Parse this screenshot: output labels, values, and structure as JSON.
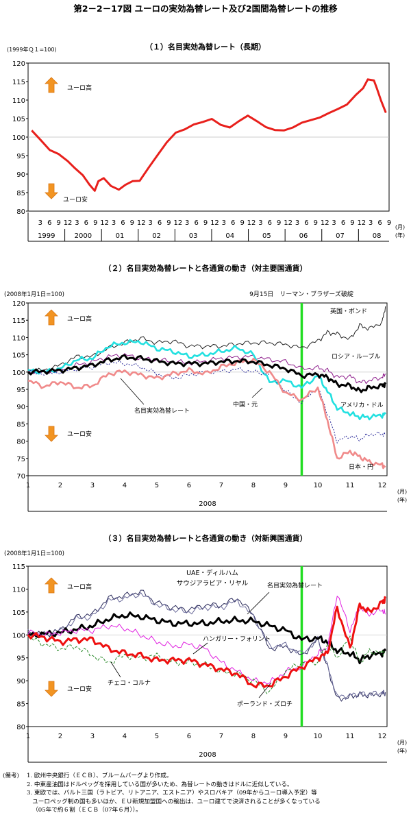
{
  "figure_title": "第2－2－17図 ユーロの実効為替レート及び2国間為替レートの推移",
  "panels": [
    {
      "title": "（１）名目実効為替レート（長期）",
      "unit_note": "(1999年Ｑ１=100)",
      "up_label": "ユーロ高",
      "down_label": "ユーロ安",
      "axis_unit_month": "(月)",
      "axis_unit_year": "(年)"
    },
    {
      "title": "（２）名目実効為替レートと各通貨の動き（対主要国通貨）",
      "unit_note": "(2008年1月1日=100)",
      "event_label": "9月15日　リーマン・ブラザーズ破綻",
      "up_label": "ユーロ高",
      "down_label": "ユーロ安",
      "axis_unit_month": "(月)",
      "axis_unit_year": "(年)",
      "year_label": "2008"
    },
    {
      "title": "（３）名目実効為替レートと各通貨の動き（対新興国通貨）",
      "unit_note": "(2008年1月1日=100)",
      "up_label": "ユーロ高",
      "down_label": "ユーロ安",
      "axis_unit_month": "(月)",
      "axis_unit_year": "(年)",
      "year_label": "2008"
    }
  ],
  "notes": [
    {
      "label": "(備考)",
      "text": "1. 欧州中央銀行（ＥＣＢ）、ブルームバーグより作成。"
    },
    {
      "label": "",
      "text": "2. 中東産油国はドルペッグを採用している国が多いため、為替レートの動きはドルに近似している。"
    },
    {
      "label": "",
      "text": "3. 東欧では、バルト三国（ラトビア、リトアニア、エストニア）やスロバキア（09年からユーロ導入予定）等"
    },
    {
      "label": "",
      "text": "   ユーロペッグ制の国も多いほか、ＥＵ新規加盟国への輸出は、ユーロ建てで決済されることが多くなっている"
    },
    {
      "label": "",
      "text": "   （05年で約６割（ＥＣＢ（07年６月））。"
    }
  ],
  "chart_data": [
    {
      "type": "line",
      "x_tick_labels": [
        "3",
        "6",
        "9",
        "12",
        "3",
        "6",
        "9",
        "12",
        "3",
        "6",
        "9",
        "12",
        "3",
        "6",
        "9",
        "12",
        "3",
        "6",
        "9",
        "12",
        "3",
        "6",
        "9",
        "12",
        "3",
        "6",
        "9",
        "12",
        "3",
        "6",
        "9",
        "12",
        "3",
        "6",
        "9",
        "12",
        "3",
        "6",
        "9"
      ],
      "year_labels": [
        "1999",
        "2000",
        "01",
        "02",
        "03",
        "04",
        "05",
        "06",
        "07",
        "08"
      ],
      "ylim": [
        80,
        120
      ],
      "yticks": [
        80,
        85,
        90,
        95,
        100,
        105,
        110,
        115,
        120
      ],
      "series": [
        {
          "color": "#e8201c",
          "x": [
            1999.0,
            1999.25,
            1999.5,
            1999.75,
            2000.0,
            2000.2,
            2000.42,
            2000.6,
            2000.75,
            2000.85,
            2001.0,
            2001.2,
            2001.42,
            2001.6,
            2001.8,
            2002.0,
            2002.25,
            2002.5,
            2002.75,
            2003.0,
            2003.25,
            2003.5,
            2003.75,
            2004.0,
            2004.25,
            2004.5,
            2004.75,
            2005.0,
            2005.25,
            2005.5,
            2005.75,
            2006.0,
            2006.25,
            2006.5,
            2006.75,
            2007.0,
            2007.25,
            2007.5,
            2007.75,
            2008.0,
            2008.2,
            2008.33,
            2008.5,
            2008.58,
            2008.7,
            2008.83
          ],
          "values": [
            101.8,
            99.2,
            96.5,
            95.4,
            93.5,
            91.6,
            89.7,
            87.2,
            85.5,
            88.1,
            88.9,
            86.8,
            85.8,
            87.1,
            88.1,
            88.2,
            91.8,
            95.2,
            98.6,
            101.2,
            102.1,
            103.4,
            104.1,
            104.9,
            103.3,
            102.6,
            104.3,
            105.8,
            104.3,
            102.7,
            101.9,
            101.8,
            102.6,
            103.9,
            104.6,
            105.3,
            106.5,
            107.6,
            108.8,
            111.4,
            113.2,
            115.6,
            115.3,
            113.2,
            109.8,
            106.6
          ]
        }
      ]
    },
    {
      "type": "line",
      "x_tick_labels": [
        "1",
        "2",
        "3",
        "4",
        "5",
        "6",
        "7",
        "8",
        "9",
        "10",
        "11",
        "12"
      ],
      "ylim": [
        70,
        120
      ],
      "yticks": [
        70,
        75,
        80,
        85,
        90,
        95,
        100,
        105,
        110,
        115,
        120
      ],
      "event_x": 9.5,
      "series": [
        {
          "name": "英国・ポンド",
          "color": "#222222",
          "x": [
            1,
            1.5,
            2,
            2.5,
            3,
            3.5,
            4,
            4.5,
            5,
            5.5,
            6,
            6.5,
            7,
            7.5,
            8,
            8.5,
            9,
            9.5,
            10,
            10.3,
            10.6,
            11,
            11.3,
            11.6,
            12,
            12.1
          ],
          "values": [
            100.5,
            100.5,
            102,
            104.5,
            104.5,
            107,
            108.5,
            109.8,
            108.5,
            109,
            107.5,
            107.5,
            107.5,
            108.2,
            108.5,
            108.5,
            108,
            107,
            109,
            111.5,
            111,
            109.5,
            113.5,
            112.5,
            114.5,
            119
          ]
        },
        {
          "name": "ロシア・ルーブル",
          "color": "#8c1a8a",
          "x": [
            1,
            1.5,
            2,
            2.5,
            3,
            3.5,
            4,
            4.5,
            5,
            5.5,
            6,
            6.5,
            7,
            7.5,
            8,
            8.5,
            9,
            9.5,
            10,
            10.3,
            10.6,
            11,
            11.3,
            11.6,
            12,
            12.1
          ],
          "values": [
            100,
            99.8,
            100.5,
            102,
            103,
            104.5,
            105,
            103.8,
            103.5,
            103.2,
            102.5,
            103.2,
            104,
            104.3,
            104.5,
            103.6,
            103,
            101,
            101.2,
            100.5,
            98.5,
            98.8,
            97,
            97.5,
            98.5,
            99.5
          ]
        },
        {
          "name": "アメリカ・ドル",
          "color": "#22e0e0",
          "x": [
            1,
            1.5,
            2,
            2.5,
            3,
            3.5,
            4,
            4.5,
            5,
            5.5,
            6,
            6.5,
            7,
            7.5,
            8,
            8.5,
            9,
            9.5,
            10,
            10.3,
            10.6,
            11,
            11.3,
            11.6,
            12,
            12.1
          ],
          "values": [
            100.5,
            100,
            101,
            103.5,
            104,
            107.5,
            108.5,
            108.8,
            106.8,
            106,
            104.5,
            105,
            106,
            107,
            105,
            97,
            97.5,
            95.5,
            99,
            94.5,
            89.5,
            88,
            87,
            87,
            87.5,
            87.8
          ]
        },
        {
          "name": "中国・元",
          "color": "#2a2a9a",
          "x": [
            1,
            1.5,
            2,
            2.5,
            3,
            3.5,
            4,
            4.5,
            5,
            5.5,
            6,
            6.5,
            7,
            7.5,
            8,
            8.5,
            9,
            9.5,
            10,
            10.3,
            10.6,
            11,
            11.3,
            11.6,
            12,
            12.1
          ],
          "values": [
            100,
            99.6,
            100,
            101,
            101.5,
            102.8,
            102.5,
            101.5,
            99.5,
            98.2,
            99.2,
            100,
            100.2,
            100.8,
            100,
            99.5,
            94.5,
            91.2,
            95.5,
            88,
            80,
            81.5,
            80.5,
            82,
            82,
            81.8
          ]
        },
        {
          "name": "日本・円",
          "color": "#f08a8a",
          "x": [
            1,
            1.5,
            2,
            2.5,
            3,
            3.5,
            4,
            4.5,
            5,
            5.5,
            6,
            6.5,
            7,
            7.5,
            8,
            8.5,
            9,
            9.5,
            10,
            10.3,
            10.6,
            11,
            11.3,
            11.6,
            12,
            12.1
          ],
          "values": [
            97.5,
            95.8,
            97.2,
            95.5,
            96,
            99.5,
            100.2,
            99.2,
            98.2,
            99.5,
            100.5,
            99.5,
            101.5,
            102.8,
            103.5,
            100,
            94,
            92,
            95.5,
            86,
            75,
            77,
            75.5,
            74,
            73,
            72.5
          ]
        },
        {
          "name": "名目実効為替レート",
          "color": "#000000",
          "x": [
            1,
            1.5,
            2,
            2.5,
            3,
            3.5,
            4,
            4.5,
            5,
            5.5,
            6,
            6.5,
            7,
            7.5,
            8,
            8.5,
            9,
            9.5,
            10,
            10.3,
            10.6,
            11,
            11.3,
            11.6,
            12,
            12.1
          ],
          "values": [
            100,
            100.2,
            100.5,
            101.2,
            102,
            103.5,
            104.3,
            104,
            103.2,
            102.5,
            102.5,
            102.5,
            103,
            103.2,
            103,
            102,
            101,
            99,
            99.3,
            98.5,
            96.5,
            96,
            94.5,
            95.5,
            96,
            96.5
          ]
        }
      ]
    },
    {
      "type": "line",
      "x_tick_labels": [
        "1",
        "2",
        "3",
        "4",
        "5",
        "6",
        "7",
        "8",
        "9",
        "10",
        "11",
        "12"
      ],
      "ylim": [
        80,
        115
      ],
      "yticks": [
        80,
        85,
        90,
        95,
        100,
        105,
        110,
        115
      ],
      "event_x": 9.5,
      "series": [
        {
          "name": "UAE・ディルハム",
          "color": "#2a2a5a",
          "x": [
            1,
            1.5,
            2,
            2.5,
            3,
            3.5,
            4,
            4.5,
            5,
            5.5,
            6,
            6.5,
            7,
            7.5,
            8,
            8.5,
            9,
            9.5,
            10,
            10.3,
            10.6,
            11,
            11.3,
            11.6,
            12,
            12.1
          ],
          "values": [
            100.5,
            100,
            101,
            104,
            104.5,
            108,
            108.5,
            109.5,
            107,
            106,
            105.5,
            106.5,
            106.5,
            108,
            104.5,
            97,
            97.5,
            95.5,
            99,
            93,
            86,
            86.5,
            87,
            86.8,
            87.2,
            87.5
          ]
        },
        {
          "name": "サウジアラビア・リヤル",
          "color": "#6a6a9a",
          "x": [
            1,
            1.5,
            2,
            2.5,
            3,
            3.5,
            4,
            4.5,
            5,
            5.5,
            6,
            6.5,
            7,
            7.5,
            8,
            8.5,
            9,
            9.5,
            10,
            10.3,
            10.6,
            11,
            11.3,
            11.6,
            12,
            12.1
          ],
          "values": [
            100.5,
            100,
            100.8,
            103.5,
            104,
            107.5,
            108,
            109,
            106.5,
            105.5,
            105,
            106,
            106,
            107.5,
            104,
            97.5,
            97.8,
            95.8,
            99,
            93.2,
            86.5,
            86.8,
            87.2,
            87,
            87.5,
            87.2
          ]
        },
        {
          "name": "名目実効為替レート",
          "color": "#000000",
          "x": [
            1,
            1.5,
            2,
            2.5,
            3,
            3.5,
            4,
            4.5,
            5,
            5.5,
            6,
            6.5,
            7,
            7.5,
            8,
            8.5,
            9,
            9.5,
            10,
            10.3,
            10.6,
            11,
            11.3,
            11.6,
            12,
            12.1
          ],
          "values": [
            100,
            100.2,
            100.5,
            101.2,
            102,
            103.5,
            104.3,
            104,
            103.2,
            102.5,
            102.5,
            102.5,
            103,
            103.2,
            103,
            102,
            101,
            99,
            99.3,
            98.5,
            96.5,
            96,
            94.5,
            95.5,
            96,
            96.5
          ]
        },
        {
          "name": "ハンガリー・フォリント",
          "color": "#e020e0",
          "x": [
            1,
            1.5,
            2,
            2.5,
            3,
            3.5,
            4,
            4.5,
            5,
            5.5,
            6,
            6.5,
            7,
            7.5,
            8,
            8.5,
            9,
            9.5,
            10,
            10.3,
            10.6,
            11,
            11.3,
            11.6,
            12,
            12.1
          ],
          "values": [
            100.5,
            100,
            100.5,
            101,
            101,
            102,
            101.5,
            100,
            98.5,
            97.5,
            98,
            97,
            94,
            92,
            90,
            89.5,
            92,
            93,
            96,
            97,
            109,
            101,
            106,
            104.5,
            105.5,
            104.5
          ]
        },
        {
          "name": "チェコ・コルナ",
          "color": "#2a8a2a",
          "x": [
            1,
            1.5,
            2,
            2.5,
            3,
            3.5,
            4,
            4.5,
            5,
            5.5,
            6,
            6.5,
            7,
            7.5,
            8,
            8.5,
            9,
            9.5,
            10,
            10.3,
            10.6,
            11,
            11.3,
            11.6,
            12,
            12.1
          ],
          "values": [
            99.5,
            98,
            97,
            97.5,
            95.5,
            94,
            95.5,
            95,
            95.5,
            94,
            94,
            93.5,
            92,
            91.5,
            90,
            87.5,
            92,
            94,
            94,
            98,
            95,
            99.5,
            94,
            96.5,
            96,
            96.5
          ]
        },
        {
          "name": "ポーランド・ズロチ",
          "color": "#ee1010",
          "x": [
            1,
            1.5,
            2,
            2.5,
            3,
            3.5,
            4,
            4.5,
            5,
            5.5,
            6,
            6.5,
            7,
            7.5,
            8,
            8.5,
            9,
            9.5,
            10,
            10.3,
            10.6,
            11,
            11.3,
            11.6,
            12,
            12.1
          ],
          "values": [
            100,
            99.5,
            98.5,
            99,
            99,
            97,
            96,
            95.5,
            94.5,
            94.5,
            94.5,
            93.5,
            92.5,
            91.5,
            89,
            89,
            91,
            93,
            95,
            96,
            106,
            97,
            106.5,
            105,
            107,
            108
          ]
        }
      ]
    }
  ]
}
